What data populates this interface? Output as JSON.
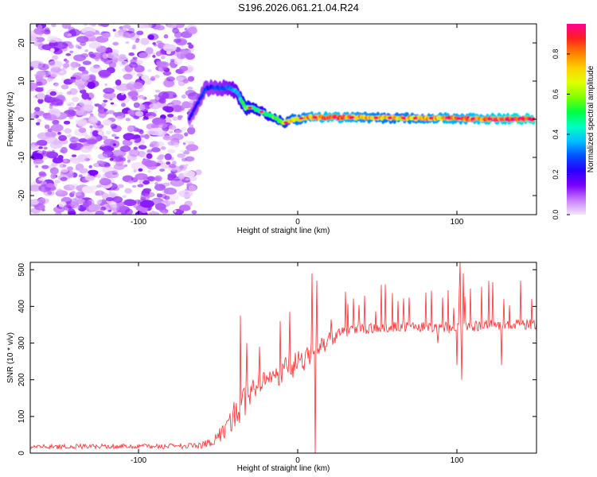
{
  "title": "S196.2026.061.21.04.R24",
  "chart_data": [
    {
      "type": "heatmap",
      "title": "S196.2026.061.21.04.R24",
      "xlabel": "Height of straight line (km)",
      "ylabel": "Frequency (Hz)",
      "xlim": [
        -168,
        150
      ],
      "ylim": [
        -25,
        25
      ],
      "xticks": [
        -100,
        0,
        100
      ],
      "xtick_labels": [
        "-100",
        "0",
        "100"
      ],
      "yticks": [
        -20,
        -10,
        0,
        10,
        20
      ],
      "ytick_labels": [
        "-20",
        "-10",
        "0",
        "10",
        "20"
      ],
      "colorbar": {
        "label": "Normalized spectral amplitude",
        "range": [
          0,
          0.95
        ],
        "ticks": [
          0.0,
          0.2,
          0.4,
          0.6,
          0.8
        ],
        "tick_labels": [
          "0.0",
          "0.2",
          "0.4",
          "0.6",
          "0.8"
        ],
        "colormap": [
          "#f4e6fb",
          "#c77cff",
          "#7a00ff",
          "#2a00ff",
          "#0050ff",
          "#00c0ff",
          "#00ffc0",
          "#00ff40",
          "#80ff00",
          "#e0ff00",
          "#ffd000",
          "#ff8000",
          "#ff2020",
          "#ff0090"
        ]
      },
      "noise_region": {
        "x_range": [
          -168,
          -65
        ],
        "y_range": [
          -25,
          25
        ],
        "amplitude": 0.15
      },
      "ridge": {
        "description": "dominant frequency trace",
        "x": [
          -68,
          -63,
          -58,
          -53,
          -48,
          -43,
          -38,
          -33,
          -28,
          -23,
          -18,
          -13,
          -8,
          -3,
          0,
          5,
          10,
          20,
          40,
          60,
          80,
          95,
          100,
          120,
          140,
          148
        ],
        "freq_hz": [
          0,
          4,
          8,
          8.5,
          8,
          8.5,
          7,
          3,
          3,
          2,
          1,
          0,
          -1,
          0,
          0,
          0.5,
          0.5,
          0.5,
          0.5,
          0.3,
          0.3,
          0.3,
          0.2,
          0.1,
          0.1,
          0.1
        ],
        "amplitude": [
          0.2,
          0.22,
          0.25,
          0.25,
          0.28,
          0.3,
          0.35,
          0.55,
          0.5,
          0.45,
          0.5,
          0.55,
          0.6,
          0.7,
          0.7,
          0.75,
          0.8,
          0.85,
          0.75,
          0.7,
          0.75,
          0.8,
          0.78,
          0.85,
          0.9,
          0.92
        ]
      }
    },
    {
      "type": "line",
      "xlabel": "Height of straight line (km)",
      "ylabel": "SNR (10 * v/v)",
      "xlim": [
        -168,
        150
      ],
      "ylim": [
        0,
        520
      ],
      "xticks": [
        -100,
        0,
        100
      ],
      "xtick_labels": [
        "-100",
        "0",
        "100"
      ],
      "yticks": [
        0,
        100,
        200,
        300,
        400,
        500
      ],
      "ytick_labels": [
        "0",
        "100",
        "200",
        "300",
        "400",
        "500"
      ],
      "color": "#ff2a2a",
      "series": [
        {
          "name": "SNR",
          "x": [
            -168,
            -150,
            -130,
            -110,
            -90,
            -70,
            -60,
            -55,
            -50,
            -45,
            -40,
            -35,
            -30,
            -25,
            -20,
            -15,
            -10,
            -5,
            0,
            5,
            10,
            15,
            20,
            25,
            30,
            40,
            50,
            60,
            70,
            80,
            90,
            100,
            110,
            120,
            130,
            140,
            150
          ],
          "y": [
            18,
            18,
            18,
            18,
            18,
            20,
            22,
            30,
            45,
            70,
            100,
            130,
            160,
            185,
            200,
            210,
            225,
            235,
            245,
            265,
            275,
            290,
            310,
            320,
            330,
            338,
            342,
            345,
            345,
            342,
            340,
            345,
            345,
            348,
            348,
            350,
            350
          ],
          "noise": [
            7,
            7,
            7,
            7,
            7,
            8,
            9,
            12,
            18,
            28,
            40,
            45,
            40,
            42,
            40,
            35,
            38,
            40,
            40,
            35,
            30,
            25,
            20,
            18,
            15,
            15,
            15,
            15,
            15,
            15,
            15,
            18,
            15,
            15,
            15,
            15,
            15
          ],
          "spikes": [
            {
              "x": -36,
              "y": 375
            },
            {
              "x": -32,
              "y": 300
            },
            {
              "x": -24,
              "y": 290
            },
            {
              "x": -11,
              "y": 360
            },
            {
              "x": -5,
              "y": 385
            },
            {
              "x": 9,
              "y": 490
            },
            {
              "x": 11,
              "y": 0
            },
            {
              "x": 12,
              "y": 470
            },
            {
              "x": 30,
              "y": 440
            },
            {
              "x": 55,
              "y": 460
            },
            {
              "x": 102,
              "y": 520
            },
            {
              "x": 104,
              "y": 490
            },
            {
              "x": 120,
              "y": 470
            },
            {
              "x": 140,
              "y": 470
            }
          ],
          "dips": [
            {
              "x": 100,
              "y": 240
            },
            {
              "x": 103,
              "y": 200
            },
            {
              "x": 128,
              "y": 240
            },
            {
              "x": 88,
              "y": 300
            }
          ]
        }
      ]
    }
  ]
}
